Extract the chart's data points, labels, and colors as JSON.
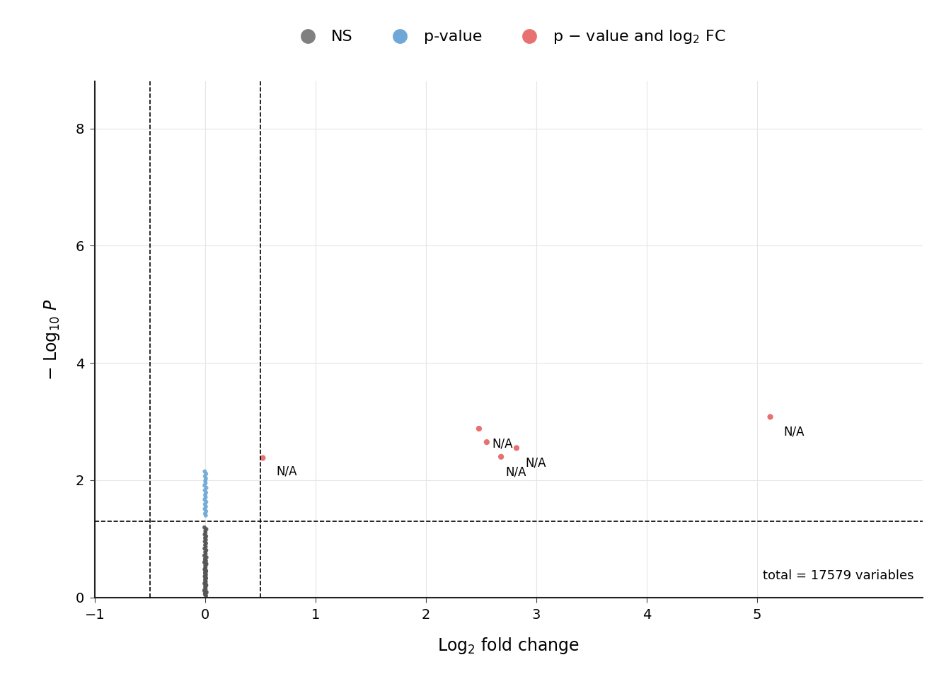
{
  "xlabel": "Log$_2$ fold change",
  "ylabel": "$-$ Log$_{10}$ $P$",
  "xlim": [
    -1.0,
    6.5
  ],
  "ylim": [
    0.0,
    8.8
  ],
  "xticks": [
    -1.0,
    0.0,
    1.0,
    2.0,
    3.0,
    4.0,
    5.0
  ],
  "yticks": [
    0,
    2,
    4,
    6,
    8
  ],
  "fc_threshold": 0.5,
  "pval_threshold": 1.301,
  "total_label": "total = 17579 variables",
  "legend_labels": [
    "NS",
    "p-value",
    "p – value and log₂ FC"
  ],
  "legend_colors": [
    "#808080",
    "#6fa8d6",
    "#e87070"
  ],
  "background_color": "#ffffff",
  "grid_color": "#e5e5e5",
  "ns_points": {
    "x": [
      0.005,
      -0.005,
      0.01,
      -0.01,
      0.002,
      -0.002,
      0.008,
      -0.008,
      0.003,
      -0.003,
      0.006,
      -0.006,
      0.004,
      -0.004,
      0.007,
      -0.007,
      0.001,
      -0.001,
      0.009,
      -0.009,
      0.005,
      -0.005,
      0.01,
      -0.01,
      0.002,
      -0.002,
      0.008,
      -0.008,
      0.003,
      -0.003,
      0.006,
      -0.006,
      0.004,
      -0.004,
      0.007,
      -0.007,
      0.001,
      -0.001,
      0.009,
      -0.009,
      0.005,
      -0.005,
      0.01,
      -0.01,
      0.002,
      -0.002,
      0.008,
      -0.008,
      0.003,
      -0.003,
      0.006,
      -0.006,
      0.004,
      -0.004,
      0.007,
      -0.007,
      0.001,
      -0.001,
      0.009,
      -0.009,
      0.005,
      -0.005,
      0.01,
      -0.01,
      0.002,
      -0.002,
      0.008,
      -0.008,
      0.003,
      -0.003,
      0.006,
      -0.006,
      0.004,
      -0.004,
      0.007,
      -0.007,
      0.001,
      -0.001,
      0.009,
      -0.009,
      0.005,
      -0.005,
      0.01,
      -0.01,
      0.002,
      -0.002,
      0.008,
      -0.008,
      0.003,
      -0.003,
      0.006,
      -0.006,
      0.004,
      -0.004,
      0.007,
      -0.007,
      0.001,
      -0.001,
      0.009,
      -0.009
    ],
    "y": [
      0.02,
      0.05,
      0.08,
      0.11,
      0.14,
      0.17,
      0.2,
      0.23,
      0.26,
      0.29,
      0.32,
      0.35,
      0.38,
      0.41,
      0.44,
      0.47,
      0.5,
      0.53,
      0.56,
      0.59,
      0.62,
      0.65,
      0.68,
      0.71,
      0.74,
      0.77,
      0.8,
      0.83,
      0.86,
      0.89,
      0.92,
      0.95,
      0.98,
      1.01,
      1.04,
      1.07,
      1.1,
      1.13,
      1.16,
      1.19,
      0.03,
      0.06,
      0.09,
      0.12,
      0.15,
      0.18,
      0.21,
      0.24,
      0.27,
      0.3,
      0.33,
      0.36,
      0.39,
      0.42,
      0.45,
      0.48,
      0.51,
      0.54,
      0.57,
      0.6,
      0.63,
      0.66,
      0.69,
      0.72,
      0.75,
      0.78,
      0.81,
      0.84,
      0.87,
      0.9,
      0.93,
      0.96,
      0.99,
      1.02,
      1.05,
      1.08,
      1.11,
      1.14,
      1.17,
      1.2,
      0.04,
      0.07,
      0.1,
      0.13,
      0.16,
      0.19,
      0.22,
      0.25,
      0.28,
      0.31,
      0.34,
      0.37,
      0.4,
      0.43,
      0.46,
      0.49,
      0.52,
      0.55,
      0.58,
      0.61
    ],
    "color": "#555555",
    "alpha": 0.75,
    "size": 15
  },
  "blue_points": {
    "x": [
      0.003,
      -0.003,
      0.006,
      -0.006,
      0.004,
      -0.004,
      0.007,
      -0.007,
      0.002,
      -0.002,
      0.005,
      -0.005,
      0.008,
      -0.008,
      0.001,
      -0.001,
      0.004,
      -0.004,
      0.006,
      -0.006
    ],
    "y": [
      1.4,
      1.43,
      1.47,
      1.51,
      1.55,
      1.59,
      1.63,
      1.67,
      1.71,
      1.75,
      1.79,
      1.83,
      1.87,
      1.91,
      1.95,
      1.99,
      2.03,
      2.07,
      2.11,
      2.15
    ],
    "color": "#6fa8d6",
    "alpha": 0.9,
    "size": 18
  },
  "red_points": {
    "x": [
      0.52,
      2.48,
      2.68,
      2.82,
      5.12,
      2.55
    ],
    "y": [
      2.38,
      2.88,
      2.4,
      2.55,
      3.08,
      2.65
    ],
    "color": "#e87070",
    "alpha": 1.0,
    "size": 35,
    "labels": [
      "N/A",
      "N/A",
      "N/A",
      "N/A",
      "N/A",
      ""
    ],
    "label_offsets_x": [
      0.12,
      0.12,
      0.04,
      0.08,
      0.12,
      0.0
    ],
    "label_offsets_y": [
      -0.12,
      -0.15,
      -0.15,
      -0.15,
      -0.15,
      0.0
    ]
  }
}
